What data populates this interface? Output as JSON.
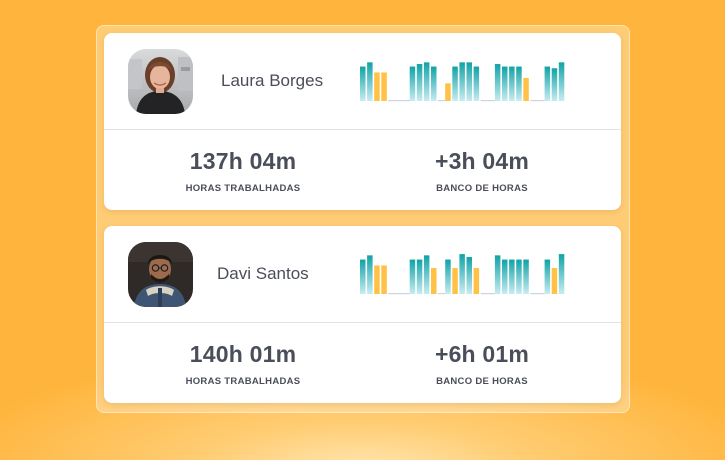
{
  "colors": {
    "background": "#ffb53d",
    "bar_teal_top": "#10a3a6",
    "bar_teal_bottom": "#c7ecf2",
    "bar_yellow": "#ffc247",
    "baseline": "#cfd3da",
    "text": "#4a4e5a"
  },
  "employees": [
    {
      "name": "Laura Borges",
      "avatar_icon": "woman-photo-icon",
      "hours_worked": "137h 04m",
      "hours_worked_label": "HORAS TRABALHADAS",
      "hour_bank": "+3h 04m",
      "hour_bank_label": "BANCO DE HORAS",
      "daily_bars": [
        {
          "level": 0.82,
          "kind": "teal"
        },
        {
          "level": 0.92,
          "kind": "teal"
        },
        {
          "level": 0.68,
          "kind": "yellow"
        },
        {
          "level": 0.68,
          "kind": "yellow"
        },
        {
          "level": 0,
          "kind": "empty"
        },
        {
          "level": 0,
          "kind": "empty"
        },
        {
          "level": 0,
          "kind": "empty"
        },
        {
          "level": 0.82,
          "kind": "teal"
        },
        {
          "level": 0.88,
          "kind": "teal"
        },
        {
          "level": 0.92,
          "kind": "teal"
        },
        {
          "level": 0.82,
          "kind": "teal"
        },
        {
          "level": 0,
          "kind": "empty"
        },
        {
          "level": 0.42,
          "kind": "yellow"
        },
        {
          "level": 0.82,
          "kind": "teal"
        },
        {
          "level": 0.92,
          "kind": "teal"
        },
        {
          "level": 0.92,
          "kind": "teal"
        },
        {
          "level": 0.82,
          "kind": "teal"
        },
        {
          "level": 0,
          "kind": "empty"
        },
        {
          "level": 0,
          "kind": "empty"
        },
        {
          "level": 0.88,
          "kind": "teal"
        },
        {
          "level": 0.82,
          "kind": "teal"
        },
        {
          "level": 0.82,
          "kind": "teal"
        },
        {
          "level": 0.82,
          "kind": "teal"
        },
        {
          "level": 0.55,
          "kind": "yellow"
        },
        {
          "level": 0,
          "kind": "empty"
        },
        {
          "level": 0,
          "kind": "empty"
        },
        {
          "level": 0.82,
          "kind": "teal"
        },
        {
          "level": 0.78,
          "kind": "teal"
        },
        {
          "level": 0.92,
          "kind": "teal"
        }
      ]
    },
    {
      "name": "Davi Santos",
      "avatar_icon": "man-photo-icon",
      "hours_worked": "140h 01m",
      "hours_worked_label": "HORAS TRABALHADAS",
      "hour_bank": "+6h 01m",
      "hour_bank_label": "BANCO DE HORAS",
      "daily_bars": [
        {
          "level": 0.82,
          "kind": "teal"
        },
        {
          "level": 0.92,
          "kind": "teal"
        },
        {
          "level": 0.68,
          "kind": "yellow"
        },
        {
          "level": 0.68,
          "kind": "yellow"
        },
        {
          "level": 0,
          "kind": "empty"
        },
        {
          "level": 0,
          "kind": "empty"
        },
        {
          "level": 0,
          "kind": "empty"
        },
        {
          "level": 0.82,
          "kind": "teal"
        },
        {
          "level": 0.82,
          "kind": "teal"
        },
        {
          "level": 0.92,
          "kind": "teal"
        },
        {
          "level": 0.62,
          "kind": "yellow"
        },
        {
          "level": 0,
          "kind": "empty"
        },
        {
          "level": 0.82,
          "kind": "teal"
        },
        {
          "level": 0.62,
          "kind": "yellow"
        },
        {
          "level": 0.95,
          "kind": "teal"
        },
        {
          "level": 0.88,
          "kind": "teal"
        },
        {
          "level": 0.62,
          "kind": "yellow"
        },
        {
          "level": 0,
          "kind": "empty"
        },
        {
          "level": 0,
          "kind": "empty"
        },
        {
          "level": 0.92,
          "kind": "teal"
        },
        {
          "level": 0.82,
          "kind": "teal"
        },
        {
          "level": 0.82,
          "kind": "teal"
        },
        {
          "level": 0.82,
          "kind": "teal"
        },
        {
          "level": 0.82,
          "kind": "teal"
        },
        {
          "level": 0,
          "kind": "empty"
        },
        {
          "level": 0,
          "kind": "empty"
        },
        {
          "level": 0.82,
          "kind": "teal"
        },
        {
          "level": 0.62,
          "kind": "yellow"
        },
        {
          "level": 0.95,
          "kind": "teal"
        }
      ]
    }
  ]
}
